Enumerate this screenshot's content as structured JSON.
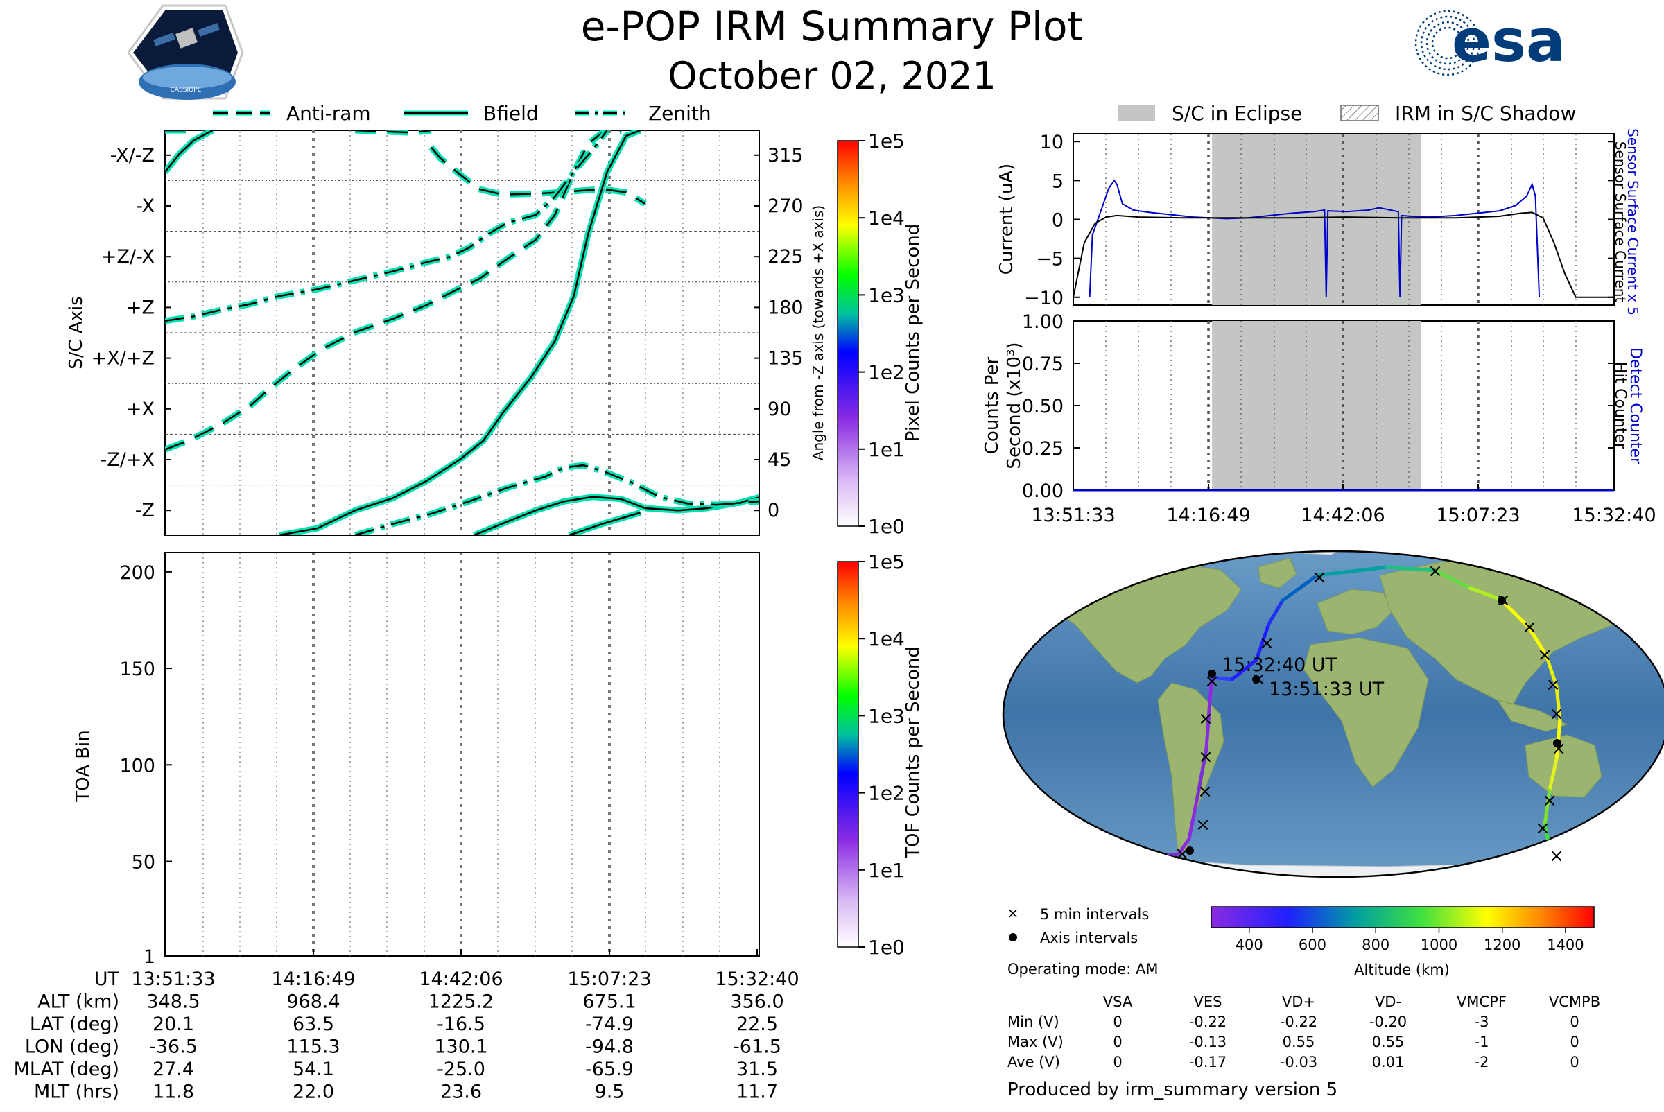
{
  "header": {
    "title": "e-POP IRM Summary Plot",
    "date": "October 02, 2021",
    "logo_left": "CASSIOPE",
    "logo_right": "esa"
  },
  "colors": {
    "teal": "#00e0b0",
    "blue": "#0000cc",
    "eclipse": "#c4c6c4",
    "ocean": "#4f86b8",
    "land": "#9bb571"
  },
  "chart_data": [
    {
      "type": "line",
      "panel": "attitude",
      "legend": [
        "Anti-ram",
        "Bfield",
        "Zenith"
      ],
      "legend_placement": "top",
      "ylabel_left": "S/C Axis",
      "ylabel_right": "Angle from -Z axis (towards +X axis)",
      "yticks_left": [
        "-X/-Z",
        "-X",
        "+Z/-X",
        "+Z",
        "+X/+Z",
        "+X",
        "-Z/+X",
        "-Z"
      ],
      "yticks_right": [
        "315",
        "270",
        "225",
        "180",
        "135",
        "90",
        "45",
        "0"
      ],
      "ylim": [
        -22,
        337
      ],
      "x_minutes_range": [
        0,
        101.1
      ],
      "series": [
        {
          "name": "Anti-ram",
          "style": "dash",
          "segments": [
            [
              [
                0,
                54
              ],
              [
                5,
                62
              ],
              [
                12,
                77
              ],
              [
                18,
                93
              ],
              [
                22,
                108
              ],
              [
                27,
                125
              ],
              [
                33,
                143
              ],
              [
                40,
                158
              ],
              [
                48,
                170
              ],
              [
                55,
                182
              ],
              [
                62,
                197
              ],
              [
                66,
                205
              ],
              [
                72,
                223
              ],
              [
                78,
                240
              ],
              [
                82,
                262
              ],
              [
                86,
                300
              ],
              [
                89,
                325
              ],
              [
                92,
                335
              ],
              [
                96,
                337
              ]
            ],
            [
              [
                0,
                337
              ],
              [
                3,
                337
              ],
              [
                6,
                337
              ]
            ],
            [
              [
                40,
                337
              ],
              [
                46,
                336
              ],
              [
                52,
                335
              ],
              [
                56,
                337
              ]
            ],
            [
              [
                56,
                322
              ],
              [
                58,
                312
              ],
              [
                62,
                298
              ],
              [
                66,
                285
              ],
              [
                71,
                280
              ],
              [
                79,
                281
              ],
              [
                86,
                283
              ],
              [
                92,
                285
              ],
              [
                97,
                282
              ],
              [
                101,
                272
              ]
            ]
          ]
        },
        {
          "name": "Bfield",
          "style": "solid",
          "segments": [
            [
              [
                0,
                300
              ],
              [
                3,
                316
              ],
              [
                6,
                328
              ],
              [
                10,
                337
              ]
            ],
            [
              [
                24,
                -22
              ],
              [
                32,
                -16
              ],
              [
                40,
                0
              ],
              [
                48,
                11
              ],
              [
                55,
                26
              ],
              [
                62,
                45
              ],
              [
                67,
                62
              ],
              [
                71,
                86
              ],
              [
                77,
                118
              ],
              [
                82,
                150
              ],
              [
                86,
                190
              ],
              [
                89,
                245
              ],
              [
                93,
                300
              ],
              [
                97,
                332
              ],
              [
                100,
                337
              ]
            ],
            [
              [
                65,
                -22
              ],
              [
                72,
                -10
              ],
              [
                78,
                0
              ],
              [
                84,
                8
              ],
              [
                90,
                12
              ],
              [
                96,
                10
              ],
              [
                101,
                2
              ]
            ],
            [
              [
                101,
                2
              ],
              [
                108,
                0
              ],
              [
                114,
                2
              ],
              [
                121,
                7
              ],
              [
                128,
                15
              ],
              [
                134,
                30
              ],
              [
                137,
                60
              ],
              [
                139,
                110
              ],
              [
                141,
                150
              ],
              [
                144,
                165
              ],
              [
                147,
                172
              ],
              [
                150,
                177
              ]
            ],
            [
              [
                85,
                -22
              ],
              [
                92,
                -12
              ],
              [
                100,
                -2
              ]
            ]
          ]
        },
        {
          "name": "Zenith",
          "style": "dashdot",
          "segments": [
            [
              [
                0,
                168
              ],
              [
                6,
                172
              ],
              [
                12,
                178
              ],
              [
                18,
                183
              ],
              [
                24,
                190
              ],
              [
                32,
                196
              ],
              [
                40,
                204
              ],
              [
                48,
                212
              ],
              [
                55,
                220
              ],
              [
                60,
                225
              ],
              [
                64,
                233
              ],
              [
                68,
                245
              ],
              [
                72,
                255
              ],
              [
                78,
                262
              ],
              [
                82,
                278
              ]
            ],
            [
              [
                82,
                278
              ],
              [
                86,
                300
              ],
              [
                90,
                320
              ],
              [
                93,
                337
              ]
            ],
            [
              [
                40,
                -22
              ],
              [
                48,
                -12
              ],
              [
                56,
                -3
              ],
              [
                64,
                8
              ],
              [
                72,
                20
              ],
              [
                80,
                30
              ],
              [
                84,
                38
              ],
              [
                88,
                40
              ],
              [
                92,
                35
              ],
              [
                98,
                25
              ],
              [
                104,
                12
              ],
              [
                110,
                6
              ],
              [
                116,
                5
              ],
              [
                122,
                7
              ],
              [
                128,
                9
              ],
              [
                134,
                10
              ],
              [
                140,
                10
              ],
              [
                146,
                15
              ],
              [
                149,
                18
              ],
              [
                152,
                10
              ]
            ]
          ]
        }
      ],
      "colorbar": {
        "label": "Pixel Counts per Second",
        "ticks": [
          "1e0",
          "1e1",
          "1e2",
          "1e3",
          "1e4",
          "1e5"
        ]
      }
    },
    {
      "type": "heatmap",
      "panel": "toa",
      "ylabel": "TOA Bin",
      "yticks": [
        "1",
        "50",
        "100",
        "150",
        "200"
      ],
      "ylim": [
        1,
        210
      ],
      "values": [],
      "colorbar": {
        "label": "TOF Counts per Second",
        "ticks": [
          "1e0",
          "1e1",
          "1e2",
          "1e3",
          "1e4",
          "1e5"
        ]
      }
    },
    {
      "type": "line",
      "panel": "current",
      "ylabel": "Current (uA)",
      "yticks": [
        "10",
        "5",
        "0",
        "−5",
        "−10"
      ],
      "ylim": [
        -11,
        11
      ],
      "legend": [
        "S/C in Eclipse",
        "IRM in S/C Shadow"
      ],
      "right_labels": [
        "Sensor Surface Current x 5",
        "Sensor Surface Current"
      ],
      "eclipse_minutes": [
        25.4,
        63.6
      ],
      "series": [
        {
          "name": "Sensor Surface Current x 5",
          "color": "blue",
          "values": [
            [
              3,
              -10
            ],
            [
              3.5,
              -2
            ],
            [
              5,
              1
            ],
            [
              6.5,
              4
            ],
            [
              7.5,
              5
            ],
            [
              8,
              4.5
            ],
            [
              9,
              2
            ],
            [
              11,
              1.2
            ],
            [
              14,
              0.9
            ],
            [
              18,
              0.6
            ],
            [
              22,
              0.3
            ],
            [
              25,
              0.2
            ],
            [
              28,
              0.1
            ],
            [
              32,
              0.2
            ],
            [
              36,
              0.5
            ],
            [
              40,
              0.8
            ],
            [
              44,
              1.0
            ],
            [
              46,
              1.2
            ],
            [
              46.3,
              -10
            ],
            [
              46.6,
              1.1
            ],
            [
              50,
              1.0
            ],
            [
              54,
              1.2
            ],
            [
              56,
              1.5
            ],
            [
              59.5,
              1.0
            ],
            [
              59.8,
              -10
            ],
            [
              60.1,
              0.5
            ],
            [
              62,
              0.4
            ],
            [
              65,
              0.3
            ],
            [
              70,
              0.5
            ],
            [
              74,
              0.8
            ],
            [
              78,
              1.1
            ],
            [
              81,
              1.8
            ],
            [
              83,
              3.0
            ],
            [
              84,
              4.5
            ],
            [
              84.6,
              3.0
            ],
            [
              85.3,
              -10
            ]
          ]
        },
        {
          "name": "Sensor Surface Current",
          "color": "black",
          "values": [
            [
              0,
              -10
            ],
            [
              2,
              -3
            ],
            [
              4,
              -0.5
            ],
            [
              6,
              0.3
            ],
            [
              8,
              0.5
            ],
            [
              12,
              0.3
            ],
            [
              20,
              0.2
            ],
            [
              30,
              0.2
            ],
            [
              40,
              0.2
            ],
            [
              50,
              0.3
            ],
            [
              60,
              0.2
            ],
            [
              70,
              0.2
            ],
            [
              78,
              0.4
            ],
            [
              82,
              0.8
            ],
            [
              84,
              0.9
            ],
            [
              86,
              0.2
            ],
            [
              88,
              -3
            ],
            [
              90,
              -7
            ],
            [
              92,
              -10
            ],
            [
              99,
              -10
            ]
          ]
        }
      ]
    },
    {
      "type": "line",
      "panel": "counts",
      "ylabel": "Counts Per Second (x10³)",
      "yticks": [
        "1.00",
        "0.75",
        "0.50",
        "0.25",
        "0.00"
      ],
      "ylim": [
        0,
        1
      ],
      "right_labels": [
        "Detect Counter",
        "Hit Counter"
      ],
      "xticks": [
        "13:51:33",
        "14:16:49",
        "14:42:06",
        "15:07:23",
        "15:32:40"
      ],
      "series": [
        {
          "name": "Detect Counter",
          "values": [
            [
              0,
              0
            ],
            [
              99,
              0
            ]
          ]
        }
      ]
    },
    {
      "type": "scatter",
      "panel": "map",
      "labels": [
        "15:32:40 UT",
        "13:51:33 UT"
      ],
      "legend": [
        "5 min intervals",
        "Axis intervals"
      ],
      "operating_mode": "Operating mode: AM",
      "colorbar": {
        "label": "Altitude (km)",
        "ticks": [
          "400",
          "600",
          "800",
          "1000",
          "1200",
          "1400"
        ]
      }
    }
  ],
  "x_axis": {
    "times": [
      "13:51:33",
      "14:16:49",
      "14:42:06",
      "15:07:23",
      "15:32:40"
    ],
    "rows": [
      {
        "label": "UT",
        "values": [
          "13:51:33",
          "14:16:49",
          "14:42:06",
          "15:07:23",
          "15:32:40"
        ]
      },
      {
        "label": "ALT (km)",
        "values": [
          "348.5",
          "968.4",
          "1225.2",
          "675.1",
          "356.0"
        ]
      },
      {
        "label": "LAT (deg)",
        "values": [
          "20.1",
          "63.5",
          "-16.5",
          "-74.9",
          "22.5"
        ]
      },
      {
        "label": "LON (deg)",
        "values": [
          "-36.5",
          "115.3",
          "130.1",
          "-94.8",
          "-61.5"
        ]
      },
      {
        "label": "MLAT (deg)",
        "values": [
          "27.4",
          "54.1",
          "-25.0",
          "-65.9",
          "31.5"
        ]
      },
      {
        "label": "MLT (hrs)",
        "values": [
          "11.8",
          "22.0",
          "23.6",
          "9.5",
          "11.7"
        ]
      }
    ]
  },
  "voltage_table": {
    "headers": [
      "VSA",
      "VES",
      "VD+",
      "VD-",
      "VMCPF",
      "VCMPB"
    ],
    "rows": [
      {
        "label": "Min (V)",
        "values": [
          "0",
          "-0.22",
          "-0.22",
          "-0.20",
          "-3",
          "0"
        ]
      },
      {
        "label": "Max (V)",
        "values": [
          "0",
          "-0.13",
          "0.55",
          "0.55",
          "-1",
          "0"
        ]
      },
      {
        "label": "Ave (V)",
        "values": [
          "0",
          "-0.17",
          "-0.03",
          "0.01",
          "-2",
          "0"
        ]
      }
    ]
  },
  "footer": "Produced by irm_summary version 5"
}
